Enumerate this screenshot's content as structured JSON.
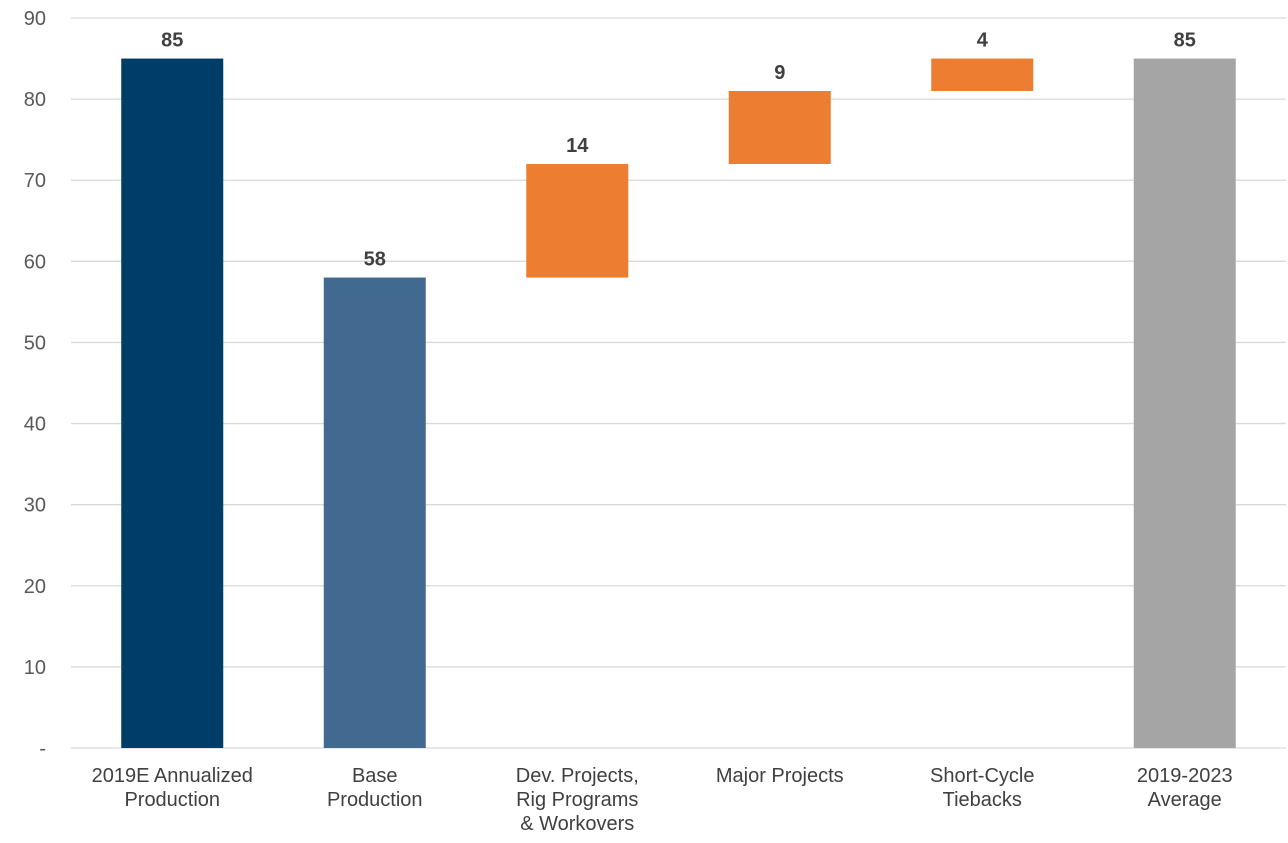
{
  "chart_data": {
    "type": "bar",
    "subtype": "waterfall",
    "title": "",
    "xlabel": "",
    "ylabel": "",
    "ylim": [
      0,
      90
    ],
    "y_ticks": [
      {
        "value": 0,
        "label": "-"
      },
      {
        "value": 10,
        "label": "10"
      },
      {
        "value": 20,
        "label": "20"
      },
      {
        "value": 30,
        "label": "30"
      },
      {
        "value": 40,
        "label": "40"
      },
      {
        "value": 50,
        "label": "50"
      },
      {
        "value": 60,
        "label": "60"
      },
      {
        "value": 70,
        "label": "70"
      },
      {
        "value": 80,
        "label": "80"
      },
      {
        "value": 90,
        "label": "90"
      }
    ],
    "grid": true,
    "legend": "none",
    "bars": [
      {
        "label_lines": [
          "2019E Annualized",
          "Production"
        ],
        "start": 0,
        "end": 85,
        "value_label": "85",
        "color": "#003e68"
      },
      {
        "label_lines": [
          "Base",
          "Production"
        ],
        "start": 0,
        "end": 58,
        "value_label": "58",
        "color": "#426990"
      },
      {
        "label_lines": [
          "Dev. Projects,",
          "Rig Programs",
          "& Workovers"
        ],
        "start": 58,
        "end": 72,
        "value_label": "14",
        "color": "#ed7d31"
      },
      {
        "label_lines": [
          "Major Projects"
        ],
        "start": 72,
        "end": 81,
        "value_label": "9",
        "color": "#ed7d31"
      },
      {
        "label_lines": [
          "Short-Cycle",
          "Tiebacks"
        ],
        "start": 81,
        "end": 85,
        "value_label": "4",
        "color": "#ed7d31"
      },
      {
        "label_lines": [
          "2019-2023",
          "Average"
        ],
        "start": 0,
        "end": 85,
        "value_label": "85",
        "color": "#a5a5a5"
      }
    ]
  }
}
